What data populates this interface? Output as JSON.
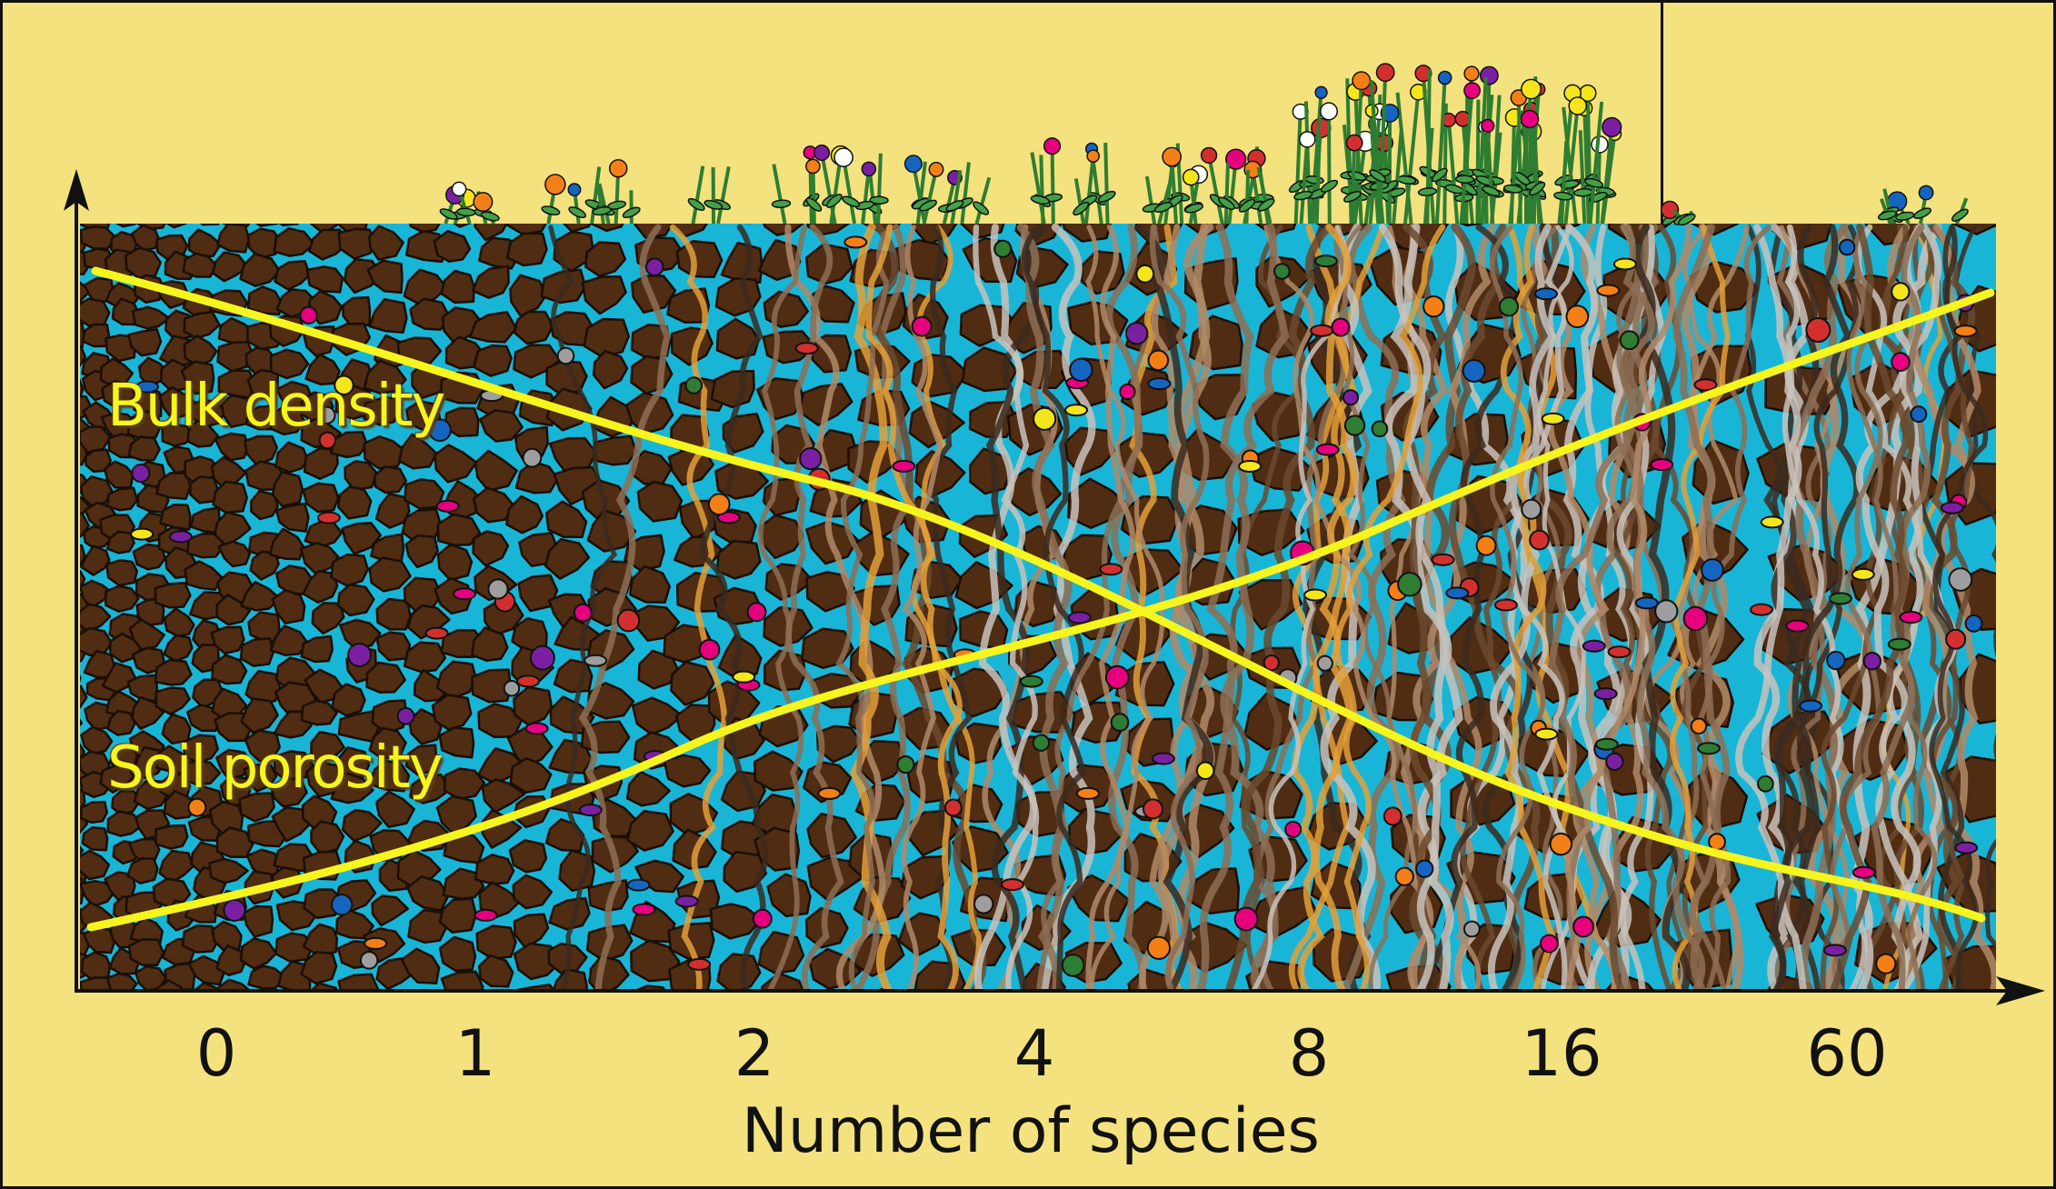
{
  "labels": {
    "bulk_density": "Bulk density",
    "soil_porosity": "Soil porosity",
    "x_axis_title": "Number of species"
  },
  "x_ticks": [
    "0",
    "1",
    "2",
    "4",
    "8",
    "16",
    "60"
  ],
  "colors": {
    "background": "#f4e27e",
    "water": "#19b5d6",
    "soil": "#4f2c12",
    "curve": "#f7f51e",
    "axis": "#111111"
  },
  "icons": [
    "axis-arrow-icon",
    "plant-icon",
    "flower-icon",
    "soil-organism-icon",
    "root-icon"
  ]
}
